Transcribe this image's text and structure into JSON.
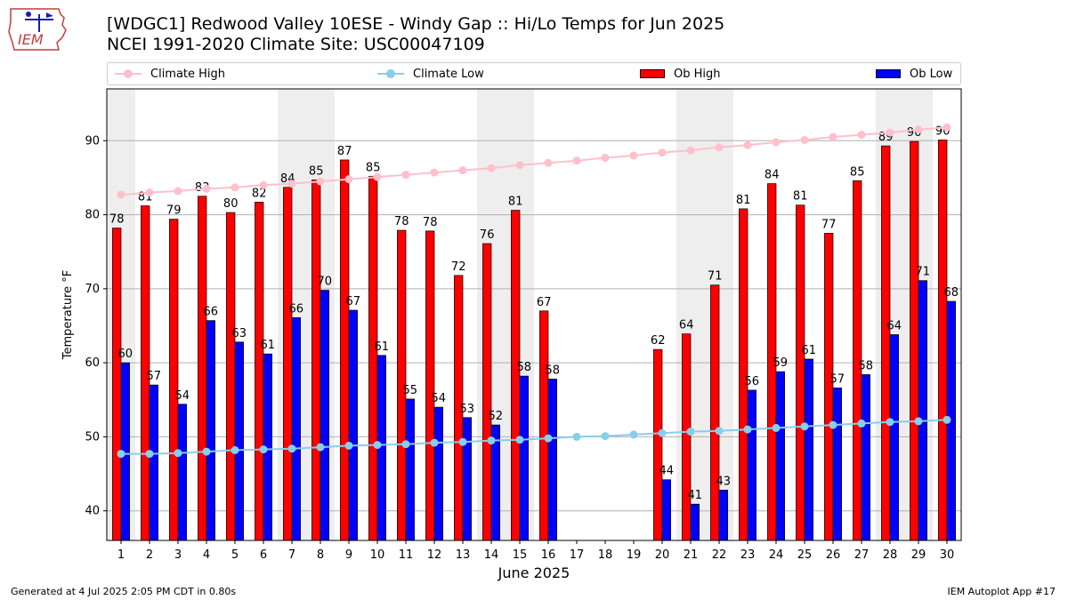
{
  "header": {
    "title_line1": "[WDGC1] Redwood Valley 10ESE - Windy Gap :: Hi/Lo Temps for Jun 2025",
    "title_line2": "NCEI 1991-2020 Climate Site: USC00047109",
    "logo_text": "IEM"
  },
  "legend": {
    "items": [
      {
        "label": "Climate High",
        "kind": "line",
        "color": "#ffc0cb"
      },
      {
        "label": "Climate Low",
        "kind": "line",
        "color": "#87ceeb"
      },
      {
        "label": "Ob High",
        "kind": "box",
        "color": "#ff0000"
      },
      {
        "label": "Ob Low",
        "kind": "box",
        "color": "#0000ff"
      }
    ]
  },
  "footer": {
    "left": "Generated at 4 Jul 2025 2:05 PM CDT in 0.80s",
    "right": "IEM Autoplot App #17"
  },
  "chart_data": {
    "type": "bar",
    "xlabel": "June 2025",
    "ylabel": "Temperature °F",
    "ylim": [
      36,
      97
    ],
    "yticks": [
      40,
      50,
      60,
      70,
      80,
      90
    ],
    "grid": true,
    "legend_position": "top",
    "weekend_shading": [
      [
        1,
        1
      ],
      [
        7,
        8
      ],
      [
        14,
        15
      ],
      [
        21,
        22
      ],
      [
        28,
        29
      ]
    ],
    "days": [
      1,
      2,
      3,
      4,
      5,
      6,
      7,
      8,
      9,
      10,
      11,
      12,
      13,
      14,
      15,
      16,
      17,
      18,
      19,
      20,
      21,
      22,
      23,
      24,
      25,
      26,
      27,
      28,
      29,
      30
    ],
    "series": [
      {
        "name": "Ob High",
        "type": "bar",
        "color": "#ff0000",
        "values": [
          78.2,
          81.2,
          79.4,
          82.5,
          80.3,
          81.7,
          83.7,
          84.7,
          87.4,
          85.2,
          77.9,
          77.8,
          71.8,
          76.1,
          80.6,
          67.0,
          null,
          null,
          null,
          61.8,
          63.9,
          70.5,
          80.8,
          84.2,
          81.3,
          77.5,
          84.6,
          89.3,
          89.9,
          90.1
        ],
        "labels": [
          "78",
          "81",
          "79",
          "83",
          "80",
          "82",
          "84",
          "85",
          "87",
          "85",
          "78",
          "78",
          "72",
          "76",
          "81",
          "67",
          null,
          null,
          null,
          "62",
          "64",
          "71",
          "81",
          "84",
          "81",
          "77",
          "85",
          "89",
          "90",
          "90"
        ]
      },
      {
        "name": "Ob Low",
        "type": "bar",
        "color": "#0000ff",
        "values": [
          60.0,
          57.0,
          54.4,
          65.7,
          62.8,
          61.2,
          66.1,
          69.8,
          67.1,
          61.0,
          55.1,
          54.0,
          52.6,
          51.6,
          58.2,
          57.8,
          null,
          null,
          null,
          44.2,
          40.9,
          42.8,
          56.3,
          58.8,
          60.5,
          56.6,
          58.4,
          63.8,
          71.1,
          68.3
        ],
        "labels": [
          "60",
          "57",
          "54",
          "66",
          "63",
          "61",
          "66",
          "70",
          "67",
          "61",
          "55",
          "54",
          "53",
          "52",
          "58",
          "58",
          null,
          null,
          null,
          "44",
          "41",
          "43",
          "56",
          "59",
          "61",
          "57",
          "58",
          "64",
          "71",
          "68"
        ]
      },
      {
        "name": "Climate High",
        "type": "line",
        "color": "#ffc0cb",
        "values": [
          82.7,
          83.0,
          83.2,
          83.5,
          83.7,
          84.0,
          84.2,
          84.5,
          84.8,
          85.1,
          85.4,
          85.7,
          86.0,
          86.3,
          86.7,
          87.0,
          87.3,
          87.7,
          88.0,
          88.4,
          88.7,
          89.1,
          89.4,
          89.8,
          90.1,
          90.5,
          90.8,
          91.1,
          91.5,
          91.8
        ]
      },
      {
        "name": "Climate Low",
        "type": "line",
        "color": "#87ceeb",
        "values": [
          47.7,
          47.7,
          47.8,
          48.0,
          48.2,
          48.3,
          48.4,
          48.6,
          48.8,
          48.9,
          49.0,
          49.2,
          49.3,
          49.5,
          49.6,
          49.8,
          50.0,
          50.1,
          50.3,
          50.5,
          50.7,
          50.8,
          51.0,
          51.2,
          51.4,
          51.6,
          51.8,
          52.0,
          52.1,
          52.3
        ]
      }
    ]
  }
}
